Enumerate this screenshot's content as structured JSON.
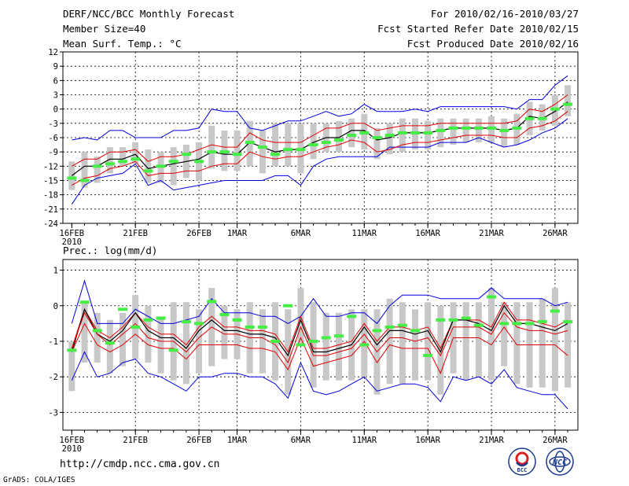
{
  "header": {
    "title": "DERF/NCC/BCC Monthly Forecast",
    "member_size": "Member Size=40",
    "variable": "Mean Surf. Temp.: °C",
    "period": "For 2010/02/16-2010/03/27",
    "started": "Fcst Started Refer Date 2010/02/15",
    "produced": "Fcst Produced Date 2010/02/16"
  },
  "footer": {
    "url": "http://cmdp.ncc.cma.gov.cn",
    "grads": "GrADS: COLA/IGES",
    "logo_bcc": "BCC",
    "logo_ncc": "NCC"
  },
  "colors": {
    "ensemble_mean": "#000000",
    "sd_band": "#e00000",
    "extremes": "#0000e0",
    "box": "#c8c8c8",
    "obs_dash": "#44ee44",
    "grid": "#000000"
  },
  "x_ticks": [
    {
      "day": 0,
      "label": "16FEB",
      "sub": "2010"
    },
    {
      "day": 5,
      "label": "21FEB"
    },
    {
      "day": 10,
      "label": "26FEB"
    },
    {
      "day": 13,
      "label": "1MAR"
    },
    {
      "day": 18,
      "label": "6MAR"
    },
    {
      "day": 23,
      "label": "11MAR"
    },
    {
      "day": 28,
      "label": "16MAR"
    },
    {
      "day": 33,
      "label": "21MAR"
    },
    {
      "day": 38,
      "label": "26MAR"
    }
  ],
  "chart_data": [
    {
      "type": "line",
      "title": "Mean Surf. Temp.: °C",
      "ylabel": "°C",
      "ylim": [
        -24,
        12
      ],
      "yticks": [
        12,
        9,
        6,
        3,
        0,
        -3,
        -6,
        -9,
        -12,
        -15,
        -18,
        -21,
        -24
      ],
      "xlim": [
        -0.7,
        39.8
      ],
      "x": [
        0,
        1,
        2,
        3,
        4,
        5,
        6,
        7,
        8,
        9,
        10,
        11,
        12,
        13,
        14,
        15,
        16,
        17,
        18,
        19,
        20,
        21,
        22,
        23,
        24,
        25,
        26,
        27,
        28,
        29,
        30,
        31,
        32,
        33,
        34,
        35,
        36,
        37,
        38,
        39
      ],
      "series": [
        {
          "name": "max",
          "values": [
            -20,
            -16,
            -14.5,
            -14,
            -13.5,
            -11.5,
            -16,
            -15,
            -17,
            -16.5,
            -16,
            -15.5,
            -15,
            -15,
            -15,
            -15,
            -14,
            -14,
            -16,
            -12,
            -10.5,
            -10,
            -10,
            -10,
            -10,
            -8,
            -8,
            -8,
            -8,
            -7,
            -7,
            -7,
            -6,
            -7,
            -8,
            -7.5,
            -6.5,
            -5,
            -4,
            -2
          ]
        },
        {
          "name": "mean_minus_sd",
          "values": [
            -16,
            -14.5,
            -14,
            -12.5,
            -12,
            -11,
            -14,
            -13.5,
            -13.5,
            -13,
            -13,
            -12,
            -11.5,
            -11.5,
            -9,
            -10,
            -10.5,
            -10,
            -10,
            -9,
            -8,
            -7.5,
            -6.5,
            -7,
            -9,
            -8.5,
            -7.5,
            -7,
            -7,
            -6.5,
            -6,
            -5.5,
            -5.5,
            -5.5,
            -6,
            -6,
            -4,
            -3.5,
            -2.5,
            -0.5
          ]
        },
        {
          "name": "mean",
          "values": [
            -14,
            -12,
            -12,
            -10.5,
            -10.5,
            -9.5,
            -12.5,
            -12,
            -11.5,
            -11,
            -10.5,
            -9,
            -9.5,
            -9.5,
            -7,
            -8,
            -9,
            -8.5,
            -8.5,
            -7,
            -6,
            -6,
            -4.5,
            -4.5,
            -6.5,
            -6,
            -5,
            -5,
            -5,
            -4.5,
            -4,
            -4,
            -4,
            -4,
            -4.5,
            -4,
            -1.5,
            -2,
            -0.5,
            1.5
          ]
        },
        {
          "name": "mean_plus_sd",
          "values": [
            -12,
            -10.5,
            -10.5,
            -9,
            -9,
            -8.5,
            -11,
            -10,
            -10,
            -9.5,
            -8.5,
            -7.5,
            -8,
            -8,
            -5,
            -6.5,
            -7,
            -7,
            -7,
            -5.5,
            -4,
            -4,
            -3,
            -3,
            -4.5,
            -4,
            -3.5,
            -3.5,
            -3.5,
            -3,
            -3,
            -3,
            -3,
            -3,
            -3,
            -2.5,
            0,
            -0.5,
            1,
            3
          ]
        },
        {
          "name": "min",
          "values": [
            -6.5,
            -6,
            -6.5,
            -4.5,
            -4.5,
            -6,
            -6,
            -6,
            -4.5,
            -4.5,
            -4,
            0,
            -0.5,
            -0.5,
            -4,
            -4.5,
            -3.5,
            -2.5,
            -2.5,
            -1.5,
            -0.5,
            -1.5,
            -1,
            1,
            -0.5,
            -0.5,
            -0.5,
            0,
            -0.5,
            0.5,
            0.5,
            0.5,
            0.5,
            0.5,
            0.5,
            0,
            2,
            2,
            5,
            7
          ]
        }
      ],
      "boxes": {
        "low": [
          -17,
          -16.5,
          -15.5,
          -13.5,
          -12,
          -11.5,
          -15.5,
          -15.5,
          -16,
          -14.5,
          -15,
          -12.5,
          -13,
          -13,
          -12,
          -13.5,
          -12,
          -12,
          -13.5,
          -10.5,
          -9,
          -9,
          -8,
          -8.5,
          -10.5,
          -9.5,
          -9,
          -8.5,
          -8.5,
          -8,
          -7.5,
          -7,
          -7,
          -7,
          -8,
          -7.5,
          -5.5,
          -4.5,
          -3.5,
          -1.5
        ],
        "high": [
          -11,
          -9,
          -10,
          -8,
          -8,
          -7,
          -8.5,
          -9,
          -8,
          -7.5,
          -7,
          -3.5,
          -4.5,
          -4.5,
          -2.5,
          -4.5,
          -3,
          -3,
          -3,
          -3,
          -3,
          -2.5,
          -2,
          -1,
          -4,
          -3,
          -2,
          -2,
          -2.5,
          -2,
          -2,
          -2,
          -2,
          -1.5,
          -2,
          -1,
          1.5,
          1,
          3,
          5
        ]
      },
      "observed": [
        -14.5,
        -15,
        -12,
        -11.5,
        -11,
        -10.5,
        -13,
        -12,
        -11,
        -9.5,
        -11,
        -9,
        -9,
        -9.5,
        -7,
        -8,
        -9.5,
        -8.5,
        -8.5,
        -7.5,
        -7,
        -6.5,
        -5.5,
        -5,
        -6,
        -5.5,
        -5,
        -5,
        -5,
        -4.5,
        -4,
        -4,
        -4,
        -4,
        -4.5,
        -4,
        -2,
        -2,
        0,
        1
      ]
    },
    {
      "type": "line",
      "title": "Prec.: log(mm/d)",
      "ylabel": "log(mm/d)",
      "ylim": [
        -3.5,
        1.3
      ],
      "yticks": [
        1,
        0,
        -1,
        -2,
        -3
      ],
      "xlim": [
        -0.7,
        39.8
      ],
      "x": [
        0,
        1,
        2,
        3,
        4,
        5,
        6,
        7,
        8,
        9,
        10,
        11,
        12,
        13,
        14,
        15,
        16,
        17,
        18,
        19,
        20,
        21,
        22,
        23,
        24,
        25,
        26,
        27,
        28,
        29,
        30,
        31,
        32,
        33,
        34,
        35,
        36,
        37,
        38,
        39
      ],
      "series": [
        {
          "name": "max",
          "values": [
            -0.5,
            0.7,
            -0.5,
            -0.5,
            -0.5,
            -0.1,
            -0.3,
            -0.5,
            -0.5,
            -0.4,
            -0.3,
            0.2,
            -0.2,
            -0.2,
            -0.2,
            -0.3,
            -0.3,
            -0.5,
            -0.3,
            0.2,
            -0.3,
            -0.3,
            -0.2,
            -0.2,
            -0.5,
            0,
            0.3,
            0.3,
            0.3,
            0.2,
            0.2,
            0.2,
            0.2,
            0.5,
            0.2,
            0.2,
            0.2,
            0.2,
            0,
            0.1
          ]
        },
        {
          "name": "mean_plus_sd",
          "values": [
            -1.2,
            -0.1,
            -0.7,
            -0.9,
            -0.6,
            -0.2,
            -0.6,
            -0.8,
            -0.8,
            -1.1,
            -0.6,
            -0.3,
            -0.6,
            -0.6,
            -0.7,
            -0.7,
            -0.8,
            -1.3,
            -0.3,
            -1.2,
            -1.2,
            -1.1,
            -1,
            -0.5,
            -1,
            -0.6,
            -0.6,
            -0.7,
            -0.6,
            -1.2,
            -0.4,
            -0.4,
            -0.4,
            -0.6,
            0.1,
            -0.4,
            -0.4,
            -0.5,
            -0.6,
            -0.4
          ]
        },
        {
          "name": "mean",
          "values": [
            -1.3,
            -0.1,
            -0.8,
            -1,
            -0.7,
            -0.2,
            -0.7,
            -0.9,
            -0.9,
            -1.2,
            -0.7,
            -0.4,
            -0.7,
            -0.7,
            -0.8,
            -0.8,
            -0.9,
            -1.4,
            -0.4,
            -1.3,
            -1.3,
            -1.2,
            -1.1,
            -0.6,
            -1.1,
            -0.7,
            -0.7,
            -0.8,
            -0.7,
            -1.3,
            -0.4,
            -0.4,
            -0.5,
            -0.7,
            0,
            -0.5,
            -0.5,
            -0.6,
            -0.7,
            -0.5
          ]
        },
        {
          "name": "mean_minus_sd",
          "values": [
            -1.2,
            -0.2,
            -0.8,
            -1.1,
            -0.8,
            -0.5,
            -0.9,
            -1,
            -1,
            -1.3,
            -0.9,
            -0.6,
            -0.8,
            -0.8,
            -0.9,
            -0.9,
            -1.1,
            -1.6,
            -0.6,
            -1.4,
            -1.4,
            -1.3,
            -1.2,
            -0.8,
            -1.3,
            -0.9,
            -0.9,
            -1,
            -0.9,
            -1.4,
            -0.6,
            -0.6,
            -0.6,
            -0.8,
            -0.2,
            -0.6,
            -0.7,
            -0.7,
            -0.8,
            -0.7
          ]
        },
        {
          "name": "min",
          "values": [
            -1.3,
            -0.5,
            -1.1,
            -1.3,
            -1.1,
            -0.8,
            -1.1,
            -1.2,
            -1.2,
            -1.5,
            -1.1,
            -1.1,
            -1.1,
            -1.1,
            -1.2,
            -1.2,
            -1.3,
            -1.8,
            -0.9,
            -1.7,
            -1.6,
            -1.5,
            -1.4,
            -1,
            -1.6,
            -1.1,
            -1.2,
            -1.2,
            -1.2,
            -1.9,
            -0.9,
            -0.9,
            -0.9,
            -1.1,
            -0.6,
            -1.1,
            -1.1,
            -1.1,
            -1.1,
            -1.4
          ]
        },
        {
          "name": "min_extreme",
          "values": [
            -2.1,
            -1.3,
            -2,
            -1.9,
            -1.6,
            -1.5,
            -1.9,
            -2,
            -2.2,
            -2.4,
            -2,
            -2,
            -1.9,
            -1.9,
            -2,
            -2,
            -2.2,
            -2.6,
            -1.6,
            -2.4,
            -2.5,
            -2.4,
            -2.2,
            -2,
            -2.4,
            -2.3,
            -2.2,
            -2.2,
            -2.3,
            -2.7,
            -2,
            -2.1,
            -2,
            -2.2,
            -1.8,
            -2.3,
            -2.4,
            -2.5,
            -2.5,
            -2.9
          ]
        }
      ],
      "boxes": {
        "low": [
          -2.4,
          -1.6,
          -1.6,
          -1.9,
          -1.7,
          -1.5,
          -1.6,
          -1.9,
          -2.1,
          -2.2,
          -1.9,
          -1.7,
          -1.5,
          -1.5,
          -1.9,
          -1.9,
          -2.1,
          -2.5,
          -1.1,
          -2.3,
          -2.1,
          -2.1,
          -2.1,
          -2,
          -2.5,
          -2.2,
          -2.2,
          -2.1,
          -2.1,
          -2.5,
          -1.9,
          -2.1,
          -2,
          -2.1,
          -1.7,
          -2.2,
          -2.3,
          -2.3,
          -2.4,
          -2.3
        ],
        "high": [
          -1,
          0.1,
          -0.2,
          -0.4,
          -0.2,
          0.3,
          0,
          -0.3,
          0.1,
          0.1,
          -0.1,
          0.5,
          0,
          -0.1,
          0.1,
          -0.1,
          0.1,
          -0.1,
          0.5,
          0.1,
          -0.2,
          -0.2,
          -0.1,
          -0.1,
          -0.1,
          0.2,
          0.1,
          -0.1,
          0.1,
          0,
          0.1,
          0.1,
          0.1,
          0.5,
          0.1,
          0.1,
          0.1,
          0.2,
          0.5,
          0.1
        ]
      },
      "observed": [
        -1.25,
        0.1,
        -0.7,
        -1.05,
        -0.1,
        -0.6,
        -0.4,
        -0.35,
        -1.25,
        -0.45,
        -0.5,
        0.12,
        -0.25,
        -0.4,
        -0.6,
        -0.6,
        -1.0,
        0.0,
        -1.1,
        -1.0,
        -0.9,
        -0.85,
        -0.3,
        -1.1,
        -0.7,
        -0.6,
        -0.55,
        -0.7,
        -1.4,
        -0.4,
        -0.4,
        -0.35,
        -0.55,
        0.25,
        -0.5,
        -0.5,
        -0.5,
        -0.45,
        -0.15,
        -0.45
      ]
    }
  ]
}
